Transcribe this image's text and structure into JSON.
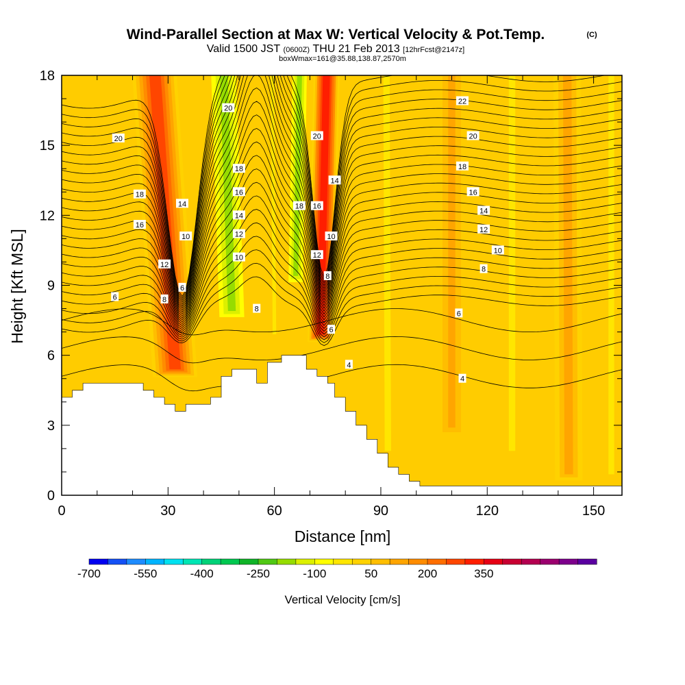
{
  "title": {
    "main": "Wind-Parallel Section at Max W: Vertical Velocity & Pot.Temp.",
    "copyright": "(C)",
    "valid_prefix": "Valid 1500 JST",
    "valid_z": "(0600Z)",
    "valid_date": "THU 21 Feb 2013",
    "forecast_tag": "[12hrFcst@2147z]",
    "box_info": "boxWmax=161@35.88,138.87,2570m"
  },
  "chart_data": {
    "type": "heatmap",
    "xlabel": "Distance [nm]",
    "ylabel": "Height [Kft MSL]",
    "xlim": [
      0,
      158
    ],
    "ylim": [
      0,
      18
    ],
    "x_ticks": [
      "0",
      "30",
      "60",
      "90",
      "120",
      "150"
    ],
    "x_tick_values": [
      0,
      30,
      60,
      90,
      120,
      150
    ],
    "y_ticks": [
      "0",
      "3",
      "6",
      "9",
      "12",
      "15",
      "18"
    ],
    "y_tick_values": [
      0,
      3,
      6,
      9,
      12,
      15,
      18
    ],
    "background_value_color": "#ffcc00",
    "terrain": [
      [
        0,
        4.2
      ],
      [
        3,
        4.2
      ],
      [
        3,
        4.5
      ],
      [
        6,
        4.5
      ],
      [
        6,
        4.8
      ],
      [
        23,
        4.8
      ],
      [
        23,
        4.5
      ],
      [
        26,
        4.5
      ],
      [
        26,
        4.2
      ],
      [
        29,
        4.2
      ],
      [
        29,
        3.9
      ],
      [
        32,
        3.9
      ],
      [
        32,
        3.6
      ],
      [
        35,
        3.6
      ],
      [
        35,
        3.9
      ],
      [
        42,
        3.9
      ],
      [
        42,
        4.2
      ],
      [
        45,
        4.2
      ],
      [
        45,
        5.1
      ],
      [
        48,
        5.1
      ],
      [
        48,
        5.4
      ],
      [
        55,
        5.4
      ],
      [
        55,
        4.8
      ],
      [
        58,
        4.8
      ],
      [
        58,
        5.7
      ],
      [
        62,
        5.7
      ],
      [
        62,
        6.0
      ],
      [
        69,
        6.0
      ],
      [
        69,
        5.4
      ],
      [
        72,
        5.4
      ],
      [
        72,
        5.1
      ],
      [
        75,
        5.1
      ],
      [
        75,
        4.8
      ],
      [
        77,
        4.8
      ],
      [
        77,
        4.2
      ],
      [
        80,
        4.2
      ],
      [
        80,
        3.6
      ],
      [
        83,
        3.6
      ],
      [
        83,
        3.0
      ],
      [
        86,
        3.0
      ],
      [
        86,
        2.4
      ],
      [
        89,
        2.4
      ],
      [
        89,
        1.8
      ],
      [
        92,
        1.8
      ],
      [
        92,
        1.2
      ],
      [
        95,
        1.2
      ],
      [
        95,
        0.9
      ],
      [
        98,
        0.9
      ],
      [
        98,
        0.6
      ],
      [
        101,
        0.6
      ],
      [
        101,
        0.4
      ],
      [
        158,
        0.4
      ]
    ],
    "w_bands": [
      {
        "x": 32,
        "halfwidth": 7.0,
        "value": 220,
        "y0": 5.0,
        "y1": 18,
        "tilt": 0.9
      },
      {
        "x": 48,
        "halfwidth": 4.5,
        "value": -230,
        "y0": 7.5,
        "y1": 18,
        "tilt": 0.45
      },
      {
        "x": 60,
        "halfwidth": 1.5,
        "value": -80,
        "y0": 6.5,
        "y1": 18,
        "tilt": 0.1
      },
      {
        "x": 66,
        "halfwidth": 2.5,
        "value": -220,
        "y0": 9.0,
        "y1": 18,
        "tilt": -0.25
      },
      {
        "x": 73,
        "halfwidth": 4.0,
        "value": 260,
        "y0": 6.5,
        "y1": 18,
        "tilt": -0.3
      },
      {
        "x": 92,
        "halfwidth": 3.5,
        "value": -90,
        "y0": 1.5,
        "y1": 18,
        "tilt": 0.05
      },
      {
        "x": 110,
        "halfwidth": 4.0,
        "value": 60,
        "y0": 2.5,
        "y1": 18,
        "tilt": 0
      },
      {
        "x": 127,
        "halfwidth": 3.5,
        "value": -60,
        "y0": 1.5,
        "y1": 18,
        "tilt": 0
      },
      {
        "x": 143,
        "halfwidth": 5.0,
        "value": 90,
        "y0": 0.5,
        "y1": 18,
        "tilt": 0.05
      },
      {
        "x": 155,
        "halfwidth": 3.0,
        "value": -60,
        "y0": 0.5,
        "y1": 18,
        "tilt": 0
      }
    ],
    "theta_contours": {
      "far_left_heights": [
        8.2,
        8.6,
        9.0,
        9.4,
        9.8,
        10.2,
        10.6,
        11.0,
        11.4,
        11.8,
        12.2,
        12.6,
        13.0,
        13.4,
        13.8,
        14.2,
        14.6,
        15.0,
        15.4,
        15.8,
        16.2,
        16.6,
        17.0,
        17.4,
        17.8
      ],
      "far_right_heights": [
        8.4,
        8.8,
        9.2,
        9.6,
        10.0,
        10.4,
        10.8,
        11.2,
        11.6,
        12.0,
        12.4,
        12.8,
        13.2,
        13.6,
        14.0,
        14.4,
        14.8,
        15.2,
        15.6,
        16.0,
        16.4,
        16.8,
        17.2,
        17.6,
        18.0
      ],
      "low_levels": [
        5.1,
        6.3,
        7.5
      ]
    },
    "contour_labels": [
      {
        "text": "20",
        "x": 16,
        "y": 15.3
      },
      {
        "text": "18",
        "x": 22,
        "y": 12.9
      },
      {
        "text": "16",
        "x": 22,
        "y": 11.6
      },
      {
        "text": "6",
        "x": 15,
        "y": 8.5
      },
      {
        "text": "14",
        "x": 34,
        "y": 12.5
      },
      {
        "text": "10",
        "x": 35,
        "y": 11.1
      },
      {
        "text": "12",
        "x": 29,
        "y": 9.9
      },
      {
        "text": "8",
        "x": 29,
        "y": 8.4
      },
      {
        "text": "6",
        "x": 34,
        "y": 8.9
      },
      {
        "text": "20",
        "x": 47,
        "y": 16.6
      },
      {
        "text": "18",
        "x": 50,
        "y": 14.0
      },
      {
        "text": "16",
        "x": 50,
        "y": 13.0
      },
      {
        "text": "14",
        "x": 50,
        "y": 12.0
      },
      {
        "text": "12",
        "x": 50,
        "y": 11.2
      },
      {
        "text": "10",
        "x": 50,
        "y": 10.2
      },
      {
        "text": "8",
        "x": 55,
        "y": 8.0
      },
      {
        "text": "18",
        "x": 67,
        "y": 12.4
      },
      {
        "text": "20",
        "x": 72,
        "y": 15.4
      },
      {
        "text": "16",
        "x": 72,
        "y": 12.4
      },
      {
        "text": "14",
        "x": 77,
        "y": 13.5
      },
      {
        "text": "10",
        "x": 76,
        "y": 11.1
      },
      {
        "text": "12",
        "x": 72,
        "y": 10.3
      },
      {
        "text": "8",
        "x": 75,
        "y": 9.4
      },
      {
        "text": "6",
        "x": 76,
        "y": 7.1
      },
      {
        "text": "4",
        "x": 81,
        "y": 5.6
      },
      {
        "text": "22",
        "x": 113,
        "y": 16.9
      },
      {
        "text": "20",
        "x": 116,
        "y": 15.4
      },
      {
        "text": "18",
        "x": 113,
        "y": 14.1
      },
      {
        "text": "16",
        "x": 116,
        "y": 13.0
      },
      {
        "text": "14",
        "x": 119,
        "y": 12.2
      },
      {
        "text": "12",
        "x": 119,
        "y": 11.4
      },
      {
        "text": "10",
        "x": 123,
        "y": 10.5
      },
      {
        "text": "8",
        "x": 119,
        "y": 9.7
      },
      {
        "text": "6",
        "x": 112,
        "y": 7.8
      },
      {
        "text": "4",
        "x": 113,
        "y": 5.0
      }
    ]
  },
  "colorbar": {
    "title": "Vertical Velocity [cm/s]",
    "labels": [
      "-700",
      "-550",
      "-400",
      "-250",
      "-100",
      "50",
      "200",
      "350"
    ],
    "colors": [
      "#0000f0",
      "#1450f5",
      "#1e8cff",
      "#00b4ff",
      "#00e1f0",
      "#00e6b4",
      "#00d278",
      "#00c850",
      "#10b428",
      "#50c814",
      "#96dc00",
      "#dcf000",
      "#ffff00",
      "#ffe600",
      "#ffd200",
      "#ffbe00",
      "#ffa500",
      "#ff8c00",
      "#ff6e00",
      "#ff4600",
      "#ff1e00",
      "#e60014",
      "#c80032",
      "#b40050",
      "#9b006e",
      "#7d008c",
      "#5a00a0"
    ]
  }
}
